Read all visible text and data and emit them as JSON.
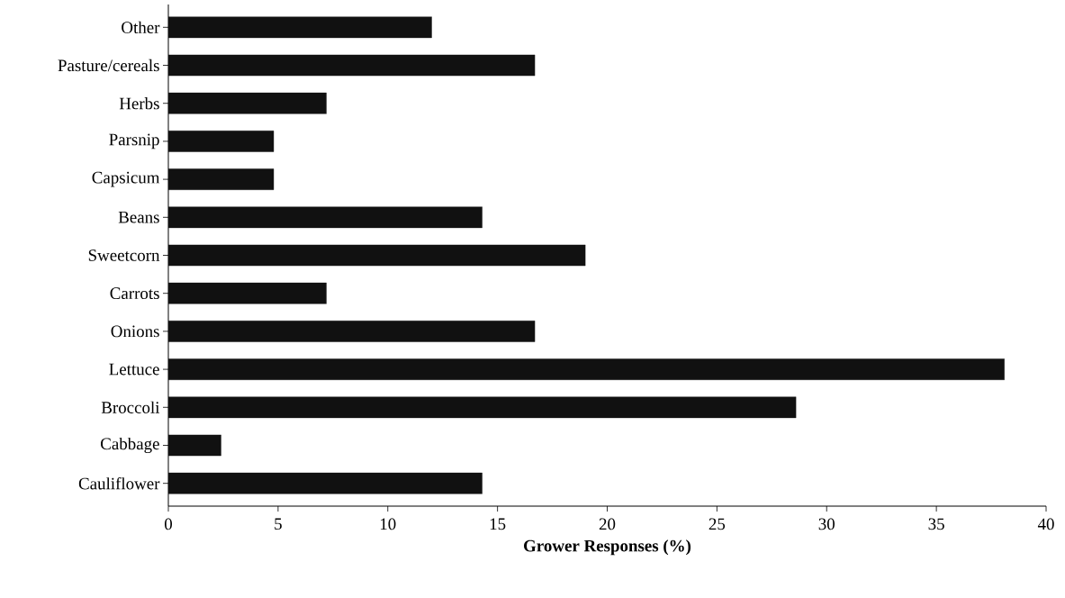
{
  "chart_data": {
    "type": "bar",
    "orientation": "horizontal",
    "xlabel": "Grower Responses (%)",
    "categories": [
      "Other",
      "Pasture/cereals",
      "Herbs",
      "Parsnip",
      "Capsicum",
      "Beans",
      "Sweetcorn",
      "Carrots",
      "Onions",
      "Lettuce",
      "Broccoli",
      "Cabbage",
      "Cauliflower"
    ],
    "values": [
      12.0,
      16.7,
      7.2,
      4.8,
      4.8,
      14.3,
      19.0,
      7.2,
      16.7,
      38.1,
      28.6,
      2.4,
      14.3
    ],
    "color": "#111111",
    "xlim": [
      0,
      40
    ],
    "xticks": [
      0,
      5,
      10,
      15,
      20,
      25,
      30,
      35,
      40
    ],
    "grid": false
  }
}
